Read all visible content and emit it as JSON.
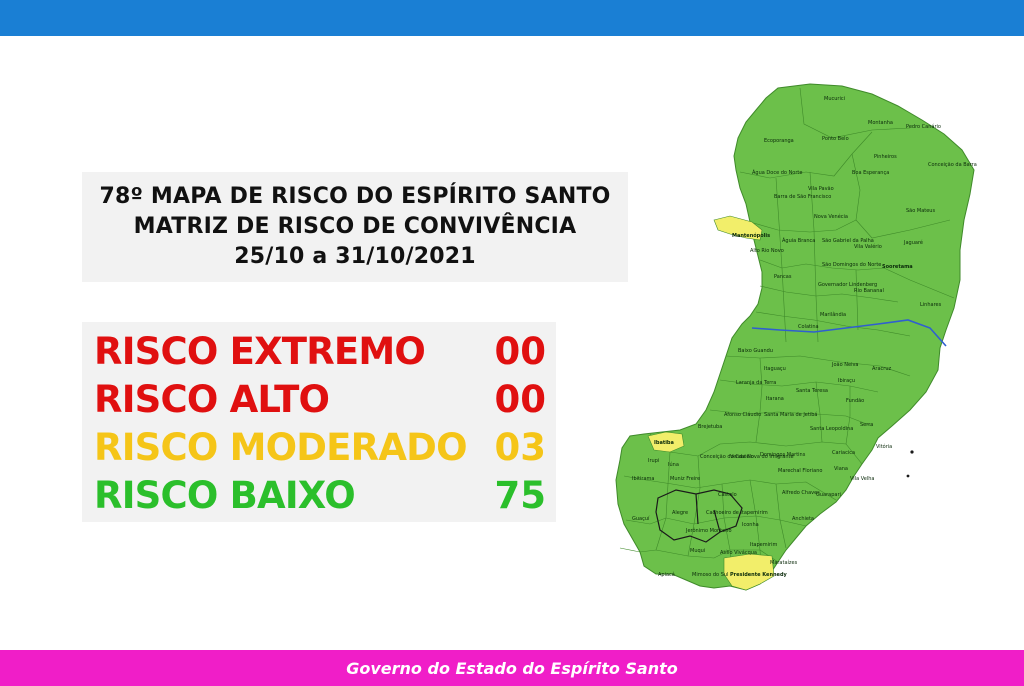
{
  "header": {
    "bar_color": "#1a7fd4"
  },
  "title": {
    "line1": "78º MAPA DE RISCO DO ESPÍRITO SANTO",
    "line2": "MATRIZ DE RISCO DE CONVIVÊNCIA",
    "line3": "25/10 a 31/10/2021"
  },
  "risk_levels": [
    {
      "label": "RISCO EXTREMO",
      "count": "00",
      "color": "#e01010"
    },
    {
      "label": "RISCO ALTO",
      "count": "00",
      "color": "#e01010"
    },
    {
      "label": "RISCO MODERADO",
      "count": "03",
      "color": "#f5c518"
    },
    {
      "label": "RISCO BAIXO",
      "count": "75",
      "color": "#2bbf2b"
    }
  ],
  "map": {
    "colors": {
      "baixo": "#6cc04a",
      "moderado": "#f2ee6a",
      "river": "#2f5fd0",
      "border": "#3f8a2a"
    },
    "municipalities": [
      "Mucurici",
      "Montanha",
      "Pedro Canário",
      "Ecoporanga",
      "Ponto Belo",
      "Pinheiros",
      "Conceição da Barra",
      "Água Doce do Norte",
      "Vila Pavão",
      "Boa Esperança",
      "Barra de São Francisco",
      "São Mateus",
      "Nova Venécia",
      "Mantenópolis",
      "Alto Rio Novo",
      "Águia Branca",
      "São Gabriel da Palha",
      "Vila Valério",
      "Jaguaré",
      "Pancas",
      "São Domingos do Norte",
      "Sooretama",
      "Governador Lindenberg",
      "Rio Bananal",
      "Linhares",
      "Marilândia",
      "Colatina",
      "Baixo Guandu",
      "João Neiva",
      "Aracruz",
      "Ibiraçu",
      "Santa Teresa",
      "Fundão",
      "Itaguaçu",
      "Itarana",
      "Laranja da Terra",
      "Afonso Cláudio",
      "Brejetuba",
      "Santa Maria de Jetibá",
      "Serra",
      "Santa Leopoldina",
      "Ibatiba",
      "Irupi",
      "Iúna",
      "Conceição do Castelo",
      "Venda Nova do Imigrante",
      "Domingos Martins",
      "Cariacica",
      "Vitória",
      "Viana",
      "Vila Velha",
      "Marechal Floriano",
      "Alfredo Chaves",
      "Guarapari",
      "Muniz Freire",
      "Castelo",
      "Ibitirama",
      "Alegre",
      "Cachoeiro de Itapemirim",
      "Jerônimo Monteiro",
      "Anchieta",
      "Iconha",
      "Guaçuí",
      "Muqui",
      "Atílio Vivácqua",
      "Itapemirim",
      "Mimoso do Sul",
      "Presidente Kennedy",
      "Marataízes",
      "Apiacá"
    ]
  },
  "footer": {
    "text": "Governo do Estado do Espírito Santo"
  }
}
